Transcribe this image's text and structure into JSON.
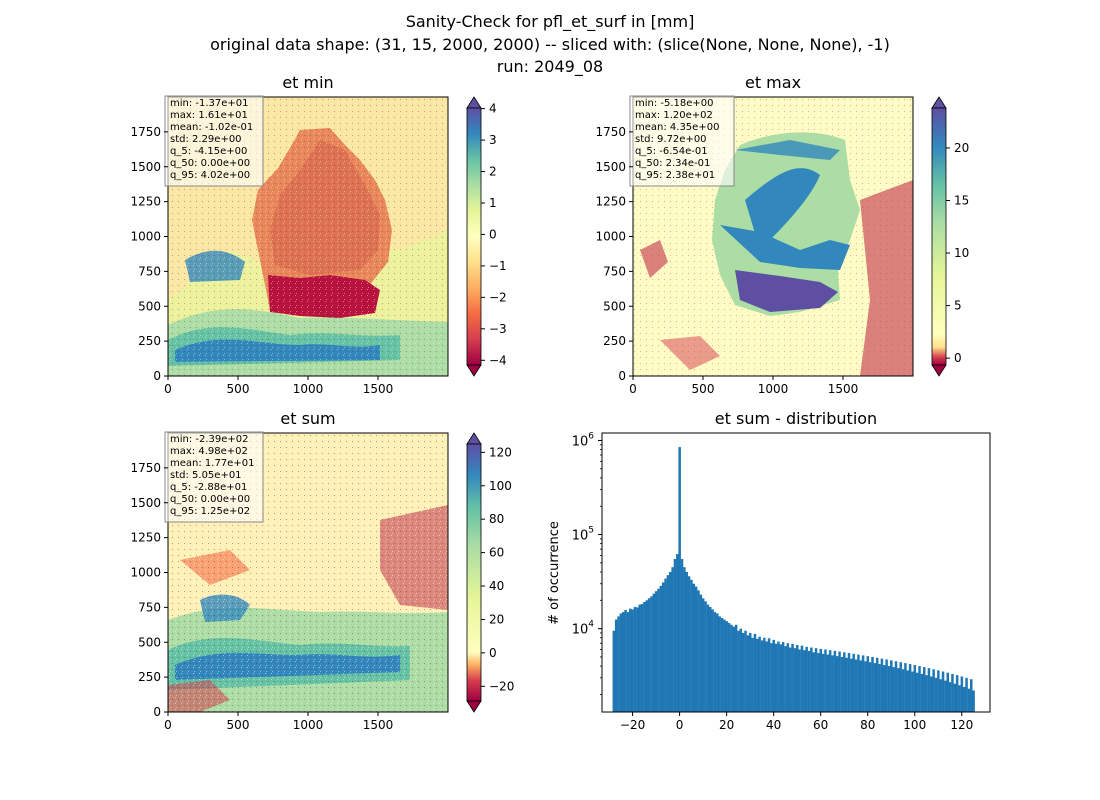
{
  "figure": {
    "title_line1": "Sanity-Check for pfl_et_surf in [mm]",
    "title_line2": "original data shape: (31, 15, 2000, 2000) -- sliced with: (slice(None, None, None), -1)",
    "title_line3": "run: 2049_08"
  },
  "panels": {
    "et_min": {
      "title": "et min",
      "stats": [
        "min: -1.37e+01",
        "max: 1.61e+01",
        "mean: -1.02e-01",
        "std: 2.29e+00",
        "q_5: -4.15e+00",
        "q_50: 0.00e+00",
        "q_95: 4.02e+00"
      ],
      "colorbar_ticks": [
        "4",
        "3",
        "2",
        "1",
        "0",
        "−1",
        "−2",
        "−3",
        "−4"
      ],
      "colorbar_range": [
        -4.15,
        4.02
      ]
    },
    "et_max": {
      "title": "et max",
      "stats": [
        "min: -5.18e+00",
        "max: 1.20e+02",
        "mean: 4.35e+00",
        "std: 9.72e+00",
        "q_5: -6.54e-01",
        "q_50: 2.34e-01",
        "q_95: 2.38e+01"
      ],
      "colorbar_ticks": [
        "20",
        "15",
        "10",
        "5",
        "0"
      ],
      "colorbar_range": [
        -0.654,
        23.8
      ]
    },
    "et_sum": {
      "title": "et sum",
      "stats": [
        "min: -2.39e+02",
        "max: 4.98e+02",
        "mean: 1.77e+01",
        "std: 5.05e+01",
        "q_5: -2.88e+01",
        "q_50: 0.00e+00",
        "q_95: 1.25e+02"
      ],
      "colorbar_ticks": [
        "120",
        "100",
        "80",
        "60",
        "40",
        "20",
        "0",
        "−20"
      ],
      "colorbar_range": [
        -28.8,
        125
      ]
    },
    "hist": {
      "title": "et sum - distribution",
      "ylabel": "# of occurrence"
    }
  },
  "map_axes": {
    "x_ticks": [
      "0",
      "500",
      "1000",
      "1500"
    ],
    "y_ticks": [
      "0",
      "250",
      "500",
      "750",
      "1000",
      "1250",
      "1500",
      "1750"
    ]
  },
  "colors": {
    "bar": "#1f77b4",
    "spectral": [
      "#9e0142",
      "#d53e4f",
      "#f46d43",
      "#fdae61",
      "#fee08b",
      "#ffffbf",
      "#e6f598",
      "#abdda4",
      "#66c2a5",
      "#3288bd",
      "#5e4fa2"
    ]
  },
  "chart_data": {
    "type": "bar",
    "title": "et sum - distribution",
    "xlabel": "",
    "ylabel": "# of occurrence",
    "yscale": "log",
    "xlim": [
      -33,
      132
    ],
    "ylim": [
      1300,
      1200000
    ],
    "x_ticks": [
      "−20",
      "0",
      "20",
      "40",
      "60",
      "80",
      "100",
      "120"
    ],
    "y_ticks": [
      "10^4",
      "10^5",
      "10^6"
    ],
    "bins": [
      {
        "x": -28,
        "y": 9500
      },
      {
        "x": -27,
        "y": 12500
      },
      {
        "x": -26,
        "y": 13500
      },
      {
        "x": -25,
        "y": 14500
      },
      {
        "x": -24,
        "y": 15000
      },
      {
        "x": -23,
        "y": 15800
      },
      {
        "x": -22,
        "y": 15000
      },
      {
        "x": -21,
        "y": 16300
      },
      {
        "x": -20,
        "y": 16000
      },
      {
        "x": -19,
        "y": 17000
      },
      {
        "x": -18,
        "y": 16800
      },
      {
        "x": -17,
        "y": 18000
      },
      {
        "x": -16,
        "y": 18300
      },
      {
        "x": -15,
        "y": 19200
      },
      {
        "x": -14,
        "y": 20000
      },
      {
        "x": -13,
        "y": 21000
      },
      {
        "x": -12,
        "y": 22000
      },
      {
        "x": -11,
        "y": 23500
      },
      {
        "x": -10,
        "y": 25000
      },
      {
        "x": -9,
        "y": 26500
      },
      {
        "x": -8,
        "y": 28500
      },
      {
        "x": -7,
        "y": 31000
      },
      {
        "x": -6,
        "y": 34000
      },
      {
        "x": -5,
        "y": 37000
      },
      {
        "x": -4,
        "y": 40000
      },
      {
        "x": -3,
        "y": 45000
      },
      {
        "x": -2,
        "y": 55000
      },
      {
        "x": -1,
        "y": 62000
      },
      {
        "x": 0,
        "y": 850000
      },
      {
        "x": 1,
        "y": 55000
      },
      {
        "x": 2,
        "y": 45000
      },
      {
        "x": 3,
        "y": 40000
      },
      {
        "x": 4,
        "y": 36000
      },
      {
        "x": 5,
        "y": 33000
      },
      {
        "x": 6,
        "y": 30000
      },
      {
        "x": 7,
        "y": 28000
      },
      {
        "x": 8,
        "y": 25500
      },
      {
        "x": 9,
        "y": 23000
      },
      {
        "x": 10,
        "y": 21000
      },
      {
        "x": 11,
        "y": 19500
      },
      {
        "x": 12,
        "y": 18000
      },
      {
        "x": 13,
        "y": 17000
      },
      {
        "x": 14,
        "y": 16000
      },
      {
        "x": 15,
        "y": 15000
      },
      {
        "x": 16,
        "y": 14500
      },
      {
        "x": 17,
        "y": 13500
      },
      {
        "x": 18,
        "y": 13000
      },
      {
        "x": 19,
        "y": 12500
      },
      {
        "x": 20,
        "y": 12000
      },
      {
        "x": 21,
        "y": 11500
      },
      {
        "x": 22,
        "y": 11000
      },
      {
        "x": 23,
        "y": 10500
      },
      {
        "x": 24,
        "y": 11000
      },
      {
        "x": 25,
        "y": 9500
      },
      {
        "x": 26,
        "y": 10000
      },
      {
        "x": 27,
        "y": 9000
      },
      {
        "x": 28,
        "y": 9500
      },
      {
        "x": 29,
        "y": 8500
      },
      {
        "x": 30,
        "y": 9000
      },
      {
        "x": 31,
        "y": 8000
      },
      {
        "x": 32,
        "y": 8800
      },
      {
        "x": 33,
        "y": 7800
      },
      {
        "x": 34,
        "y": 8200
      },
      {
        "x": 35,
        "y": 7500
      },
      {
        "x": 36,
        "y": 8000
      },
      {
        "x": 37,
        "y": 7300
      },
      {
        "x": 38,
        "y": 7900
      },
      {
        "x": 39,
        "y": 7000
      },
      {
        "x": 40,
        "y": 7600
      },
      {
        "x": 41,
        "y": 6900
      },
      {
        "x": 42,
        "y": 7300
      },
      {
        "x": 43,
        "y": 6800
      },
      {
        "x": 44,
        "y": 7200
      },
      {
        "x": 45,
        "y": 6500
      },
      {
        "x": 46,
        "y": 7000
      },
      {
        "x": 47,
        "y": 6300
      },
      {
        "x": 48,
        "y": 6900
      },
      {
        "x": 49,
        "y": 6200
      },
      {
        "x": 50,
        "y": 6700
      },
      {
        "x": 51,
        "y": 6000
      },
      {
        "x": 52,
        "y": 6600
      },
      {
        "x": 53,
        "y": 5900
      },
      {
        "x": 54,
        "y": 6400
      },
      {
        "x": 55,
        "y": 5800
      },
      {
        "x": 56,
        "y": 6300
      },
      {
        "x": 57,
        "y": 5600
      },
      {
        "x": 58,
        "y": 6200
      },
      {
        "x": 59,
        "y": 5500
      },
      {
        "x": 60,
        "y": 6100
      },
      {
        "x": 61,
        "y": 5400
      },
      {
        "x": 62,
        "y": 6000
      },
      {
        "x": 63,
        "y": 5300
      },
      {
        "x": 64,
        "y": 5900
      },
      {
        "x": 65,
        "y": 5200
      },
      {
        "x": 66,
        "y": 5800
      },
      {
        "x": 67,
        "y": 5100
      },
      {
        "x": 68,
        "y": 5700
      },
      {
        "x": 69,
        "y": 5000
      },
      {
        "x": 70,
        "y": 5600
      },
      {
        "x": 71,
        "y": 4900
      },
      {
        "x": 72,
        "y": 5500
      },
      {
        "x": 73,
        "y": 4800
      },
      {
        "x": 74,
        "y": 5400
      },
      {
        "x": 75,
        "y": 4700
      },
      {
        "x": 76,
        "y": 5300
      },
      {
        "x": 77,
        "y": 4600
      },
      {
        "x": 78,
        "y": 5200
      },
      {
        "x": 79,
        "y": 4500
      },
      {
        "x": 80,
        "y": 5100
      },
      {
        "x": 81,
        "y": 4400
      },
      {
        "x": 82,
        "y": 5000
      },
      {
        "x": 83,
        "y": 4300
      },
      {
        "x": 84,
        "y": 4900
      },
      {
        "x": 85,
        "y": 4200
      },
      {
        "x": 86,
        "y": 4800
      },
      {
        "x": 87,
        "y": 4100
      },
      {
        "x": 88,
        "y": 4700
      },
      {
        "x": 89,
        "y": 4000
      },
      {
        "x": 90,
        "y": 4600
      },
      {
        "x": 91,
        "y": 3900
      },
      {
        "x": 92,
        "y": 4500
      },
      {
        "x": 93,
        "y": 3800
      },
      {
        "x": 94,
        "y": 4400
      },
      {
        "x": 95,
        "y": 3700
      },
      {
        "x": 96,
        "y": 4300
      },
      {
        "x": 97,
        "y": 3600
      },
      {
        "x": 98,
        "y": 4200
      },
      {
        "x": 99,
        "y": 3500
      },
      {
        "x": 100,
        "y": 4100
      },
      {
        "x": 101,
        "y": 3400
      },
      {
        "x": 102,
        "y": 4000
      },
      {
        "x": 103,
        "y": 3300
      },
      {
        "x": 104,
        "y": 3900
      },
      {
        "x": 105,
        "y": 3200
      },
      {
        "x": 106,
        "y": 3800
      },
      {
        "x": 107,
        "y": 3100
      },
      {
        "x": 108,
        "y": 3700
      },
      {
        "x": 109,
        "y": 3000
      },
      {
        "x": 110,
        "y": 3600
      },
      {
        "x": 111,
        "y": 2900
      },
      {
        "x": 112,
        "y": 3500
      },
      {
        "x": 113,
        "y": 2800
      },
      {
        "x": 114,
        "y": 3400
      },
      {
        "x": 115,
        "y": 2700
      },
      {
        "x": 116,
        "y": 3300
      },
      {
        "x": 117,
        "y": 2600
      },
      {
        "x": 118,
        "y": 3200
      },
      {
        "x": 119,
        "y": 2500
      },
      {
        "x": 120,
        "y": 3100
      },
      {
        "x": 121,
        "y": 2400
      },
      {
        "x": 122,
        "y": 3000
      },
      {
        "x": 123,
        "y": 2300
      },
      {
        "x": 124,
        "y": 2900
      },
      {
        "x": 125,
        "y": 2200
      }
    ]
  }
}
